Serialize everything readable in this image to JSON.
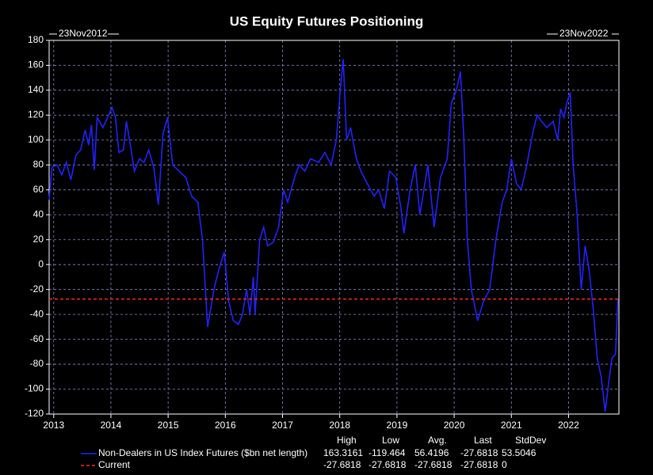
{
  "chart_data": {
    "type": "line",
    "title": "US Equity Futures Positioning",
    "start_label": "23Nov2012",
    "end_label": "23Nov2022",
    "xlim": [
      2012.92,
      2022.88
    ],
    "xticks": [
      2013,
      2014,
      2015,
      2016,
      2017,
      2018,
      2019,
      2020,
      2021,
      2022
    ],
    "ylim": [
      -120,
      180
    ],
    "yticks": [
      -120,
      -100,
      -80,
      -60,
      -40,
      -20,
      0,
      20,
      40,
      60,
      80,
      100,
      120,
      140,
      160,
      180
    ],
    "grid": true,
    "x": [
      2012.92,
      2012.97,
      2013.06,
      2013.14,
      2013.22,
      2013.3,
      2013.39,
      2013.47,
      2013.55,
      2013.61,
      2013.66,
      2013.71,
      2013.76,
      2013.86,
      2013.96,
      2014.02,
      2014.08,
      2014.14,
      2014.22,
      2014.27,
      2014.36,
      2014.41,
      2014.5,
      2014.58,
      2014.66,
      2014.75,
      2014.83,
      2014.91,
      2014.99,
      2015.08,
      2015.19,
      2015.31,
      2015.41,
      2015.52,
      2015.6,
      2015.69,
      2015.8,
      2015.88,
      2015.98,
      2016.06,
      2016.14,
      2016.23,
      2016.3,
      2016.37,
      2016.43,
      2016.49,
      2016.52,
      2016.6,
      2016.67,
      2016.74,
      2016.84,
      2016.93,
      2017.02,
      2017.09,
      2017.21,
      2017.29,
      2017.39,
      2017.49,
      2017.63,
      2017.74,
      2017.85,
      2017.94,
      2018.01,
      2018.06,
      2018.12,
      2018.19,
      2018.29,
      2018.37,
      2018.48,
      2018.6,
      2018.68,
      2018.78,
      2018.87,
      2018.98,
      2019.07,
      2019.12,
      2019.23,
      2019.32,
      2019.4,
      2019.54,
      2019.65,
      2019.76,
      2019.88,
      2019.95,
      2020.04,
      2020.11,
      2020.17,
      2020.23,
      2020.3,
      2020.41,
      2020.51,
      2020.62,
      2020.73,
      2020.84,
      2020.92,
      2021.0,
      2021.09,
      2021.17,
      2021.27,
      2021.37,
      2021.45,
      2021.53,
      2021.62,
      2021.73,
      2021.81,
      2021.86,
      2021.92,
      2021.97,
      2022.03,
      2022.08,
      2022.15,
      2022.22,
      2022.29,
      2022.36,
      2022.43,
      2022.5,
      2022.57,
      2022.64,
      2022.7,
      2022.76,
      2022.82,
      2022.86
    ],
    "series": [
      {
        "name": "Non-Dealers in US Index Futures ($bn net length)",
        "color": "#2222ff",
        "values": [
          52,
          78,
          80,
          72,
          82,
          68,
          88,
          92,
          108,
          96,
          112,
          76,
          118,
          110,
          120,
          126,
          118,
          90,
          92,
          115,
          90,
          75,
          85,
          82,
          92,
          78,
          48,
          105,
          118,
          80,
          75,
          70,
          55,
          50,
          20,
          -50,
          -20,
          -5,
          10,
          -30,
          -45,
          -48,
          -40,
          -20,
          -40,
          -10,
          -40,
          20,
          30,
          15,
          18,
          30,
          60,
          50,
          70,
          80,
          75,
          85,
          82,
          90,
          80,
          100,
          140,
          165,
          100,
          110,
          85,
          75,
          65,
          55,
          60,
          45,
          75,
          70,
          45,
          25,
          60,
          80,
          40,
          80,
          30,
          70,
          85,
          130,
          140,
          155,
          100,
          20,
          -20,
          -45,
          -30,
          -20,
          20,
          50,
          60,
          85,
          65,
          60,
          80,
          105,
          120,
          115,
          110,
          115,
          100,
          125,
          118,
          130,
          138,
          80,
          40,
          -20,
          15,
          -5,
          -35,
          -75,
          -90,
          -118,
          -95,
          -75,
          -72,
          -28
        ],
        "stats": [
          163.3161,
          -119.464,
          56.4196,
          -27.6818,
          53.5046
        ]
      },
      {
        "name": "Current",
        "color": "#ff2222",
        "hline": -27.6818,
        "dashed": true,
        "stats": [
          -27.6818,
          -27.6818,
          -27.6818,
          -27.6818,
          0
        ]
      }
    ],
    "stats_headers": [
      "High",
      "Low",
      "Avg.",
      "Last",
      "StdDev"
    ]
  }
}
